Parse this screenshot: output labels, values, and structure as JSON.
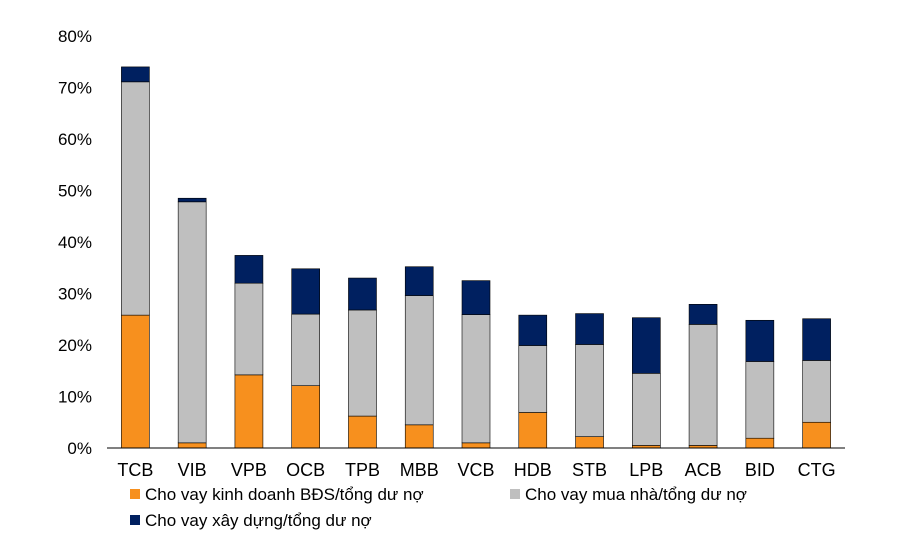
{
  "chart_data": {
    "type": "bar",
    "stacked": true,
    "categories": [
      "TCB",
      "VIB",
      "VPB",
      "OCB",
      "TPB",
      "MBB",
      "VCB",
      "HDB",
      "STB",
      "LPB",
      "ACB",
      "BID",
      "CTG"
    ],
    "series": [
      {
        "name": "Cho vay kinh doanh BĐS/tổng dư nợ",
        "color": "#F7901E",
        "values": [
          25.8,
          1.0,
          14.2,
          12.1,
          6.2,
          4.5,
          1.0,
          6.9,
          2.2,
          0.5,
          0.5,
          1.9,
          5.0
        ]
      },
      {
        "name": "Cho vay mua nhà/tổng dư nợ",
        "color": "#BFBFBF",
        "values": [
          45.3,
          46.8,
          17.8,
          13.9,
          20.6,
          25.1,
          24.9,
          13.0,
          17.9,
          14.0,
          23.5,
          14.9,
          12.0
        ]
      },
      {
        "name": "Cho vay xây dựng/tổng dư nợ",
        "color": "#002060",
        "values": [
          2.9,
          0.7,
          5.4,
          8.8,
          6.2,
          5.6,
          6.6,
          5.9,
          6.0,
          10.8,
          3.9,
          8.0,
          8.1
        ]
      }
    ],
    "ylim": [
      0,
      80
    ],
    "yticks": [
      0,
      10,
      20,
      30,
      40,
      50,
      60,
      70,
      80
    ],
    "ytick_labels": [
      "0%",
      "10%",
      "20%",
      "30%",
      "40%",
      "50%",
      "60%",
      "70%",
      "80%"
    ],
    "grid": false,
    "legend_position": "bottom"
  }
}
